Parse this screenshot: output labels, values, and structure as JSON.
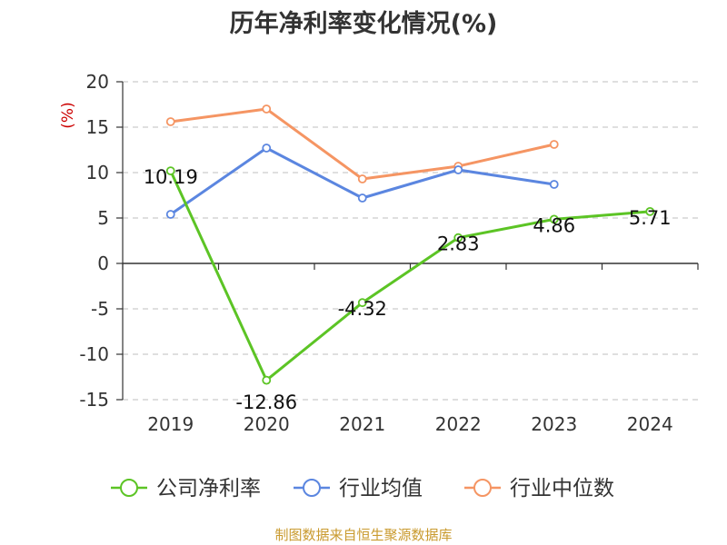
{
  "chart_data": {
    "type": "line",
    "title": "历年净利率变化情况(%)",
    "ylabel": "(%)",
    "xlabel": "",
    "categories": [
      "2019",
      "2020",
      "2021",
      "2022",
      "2023",
      "2024"
    ],
    "ylim": [
      -15,
      20
    ],
    "yticks": [
      20,
      15,
      10,
      5,
      0,
      -5,
      -10,
      -15
    ],
    "grid": true,
    "legend_position": "bottom",
    "series": [
      {
        "name": "公司净利率",
        "color": "#5cc425",
        "values": [
          10.19,
          -12.86,
          -4.32,
          2.83,
          4.86,
          5.71
        ],
        "labels": [
          "10.19",
          "-12.86",
          "-4.32",
          "2.83",
          "4.86",
          "5.71"
        ]
      },
      {
        "name": "行业均值",
        "color": "#5b86e0",
        "values": [
          5.4,
          12.7,
          7.2,
          10.3,
          8.7,
          null
        ]
      },
      {
        "name": "行业中位数",
        "color": "#f59563",
        "values": [
          15.6,
          17.0,
          9.3,
          10.7,
          13.1,
          null
        ]
      }
    ]
  },
  "source": "制图数据来自恒生聚源数据库"
}
